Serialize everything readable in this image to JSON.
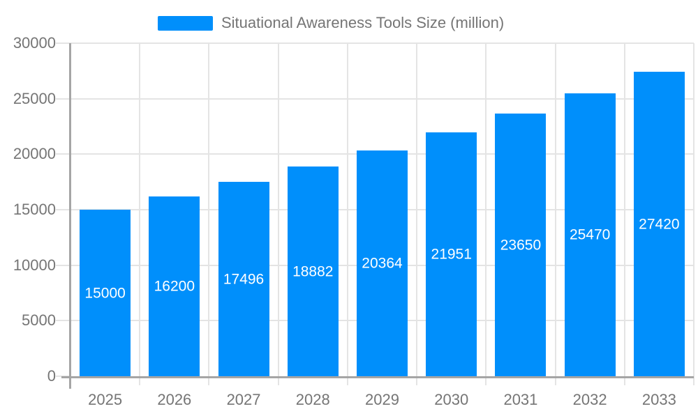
{
  "legend": {
    "label": "Situational Awareness Tools Size (million)"
  },
  "chart_data": {
    "type": "bar",
    "title": "Situational Awareness Tools Size (million)",
    "categories": [
      "2025",
      "2026",
      "2027",
      "2028",
      "2029",
      "2030",
      "2031",
      "2032",
      "2033"
    ],
    "values": [
      15000,
      16200,
      17496,
      18882,
      20364,
      21951,
      23650,
      25470,
      27420
    ],
    "xlabel": "",
    "ylabel": "",
    "ylim": [
      0,
      30000
    ],
    "ytick_step": 5000,
    "ytick_labels": [
      "0",
      "5000",
      "10000",
      "15000",
      "20000",
      "25000",
      "30000"
    ],
    "grid": true,
    "legend_position": "top",
    "value_labels_inside_bars": true,
    "colors": {
      "bar": "#008FFB",
      "value_label": "#FFFFFF",
      "axis_text": "#757575",
      "gridline": "#E4E4E4",
      "axis_line": "#A5A5A5"
    }
  }
}
